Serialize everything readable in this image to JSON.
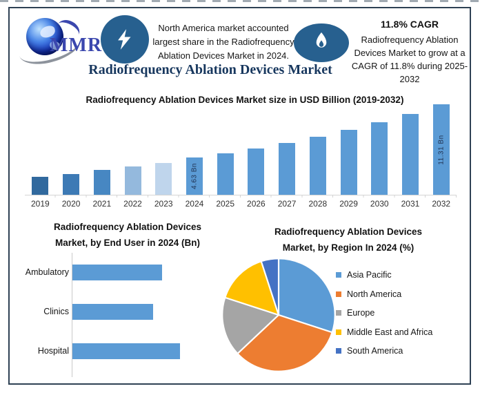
{
  "header": {
    "logo": {
      "brand": "MMR"
    },
    "left_callout": {
      "icon": "lightning-icon",
      "text": "North America market accounted largest share in the Radiofrequency Ablation Devices Market in 2024."
    },
    "right_callout": {
      "icon": "flame-icon",
      "headline": "11.8% CAGR",
      "text": "Radiofrequency Ablation Devices Market to grow at a CAGR of 11.8% during 2025-2032"
    },
    "main_title": "Radiofrequency Ablation Devices Market"
  },
  "colors": {
    "icon_circle": "#27608F",
    "frame_border": "#2E4154",
    "main_title_navy": "#17375E",
    "bar_default": "#5B9BD5",
    "logo_text_blue": "#3B47AE"
  },
  "chart_data": [
    {
      "id": "market_size",
      "type": "bar",
      "title": "Radiofrequency Ablation Devices Market size in USD Billion (2019-2032)",
      "ylabel": "USD Billion",
      "xlabel": "",
      "grid": false,
      "ylim": [
        0,
        12
      ],
      "categories": [
        "2019",
        "2020",
        "2021",
        "2022",
        "2023",
        "2024",
        "2025",
        "2026",
        "2027",
        "2028",
        "2029",
        "2030",
        "2031",
        "2032"
      ],
      "values": [
        2.24,
        2.6,
        3.09,
        3.51,
        4.0,
        4.63,
        5.18,
        5.79,
        6.47,
        7.23,
        8.09,
        9.04,
        10.11,
        11.31
      ],
      "data_labels": {
        "2024": "4.63 Bn",
        "2032": "11.31 Bn"
      },
      "bar_colors": [
        "#31699E",
        "#3D7AB5",
        "#4787C2",
        "#94B9DD",
        "#BFD5EC",
        "#5B9BD5",
        "#5B9BD5",
        "#5B9BD5",
        "#5B9BD5",
        "#5B9BD5",
        "#5B9BD5",
        "#5B9BD5",
        "#5B9BD5",
        "#5B9BD5"
      ]
    },
    {
      "id": "end_user",
      "type": "bar",
      "orientation": "horizontal",
      "title": "Radiofrequency Ablation Devices Market, by End User in 2024 (Bn)",
      "grid": false,
      "categories": [
        "Ambulatory",
        "Clinics",
        "Hospital"
      ],
      "values": [
        1.5,
        1.35,
        1.8
      ],
      "bar_color": "#5B9BD5"
    },
    {
      "id": "by_region",
      "type": "pie",
      "title": "Radiofrequency Ablation Devices Market, by Region In 2024 (%)",
      "legend_position": "right",
      "start_angle_deg": 0,
      "labels": [
        "Asia Pacific",
        "North America",
        "Europe",
        "Middle East and Africa",
        "South America"
      ],
      "values": [
        30,
        33,
        17,
        15,
        5
      ],
      "colors": [
        "#5B9BD5",
        "#ED7D31",
        "#A5A5A5",
        "#FFC000",
        "#4472C4"
      ]
    }
  ]
}
